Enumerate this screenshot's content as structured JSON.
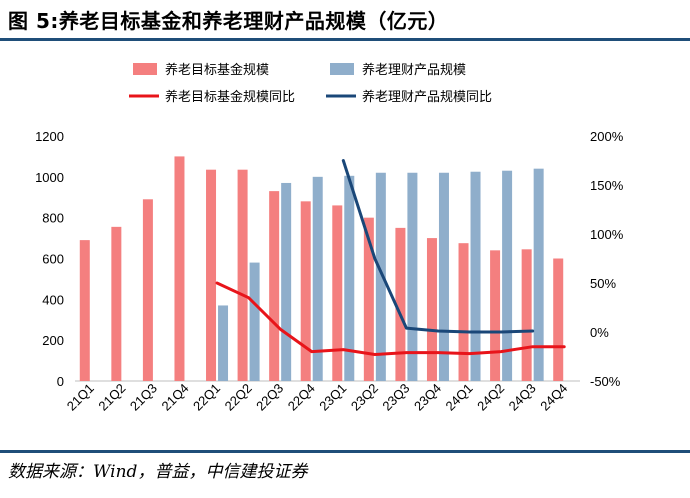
{
  "title": "图 5:养老目标基金和养老理财产品规模（亿元）",
  "source": "数据来源：Wind，普益，中信建投证券",
  "colors": {
    "fund_bar": "#f47f7f",
    "wealth_bar": "#8faecb",
    "fund_line": "#e8141a",
    "wealth_line": "#1a4778",
    "rule": "#1f4e79"
  },
  "chart_data": {
    "type": "bar",
    "categories": [
      "21Q1",
      "21Q2",
      "21Q3",
      "21Q4",
      "22Q1",
      "22Q2",
      "22Q3",
      "22Q4",
      "23Q1",
      "23Q2",
      "23Q3",
      "23Q4",
      "24Q1",
      "24Q2",
      "24Q3",
      "24Q4"
    ],
    "series": [
      {
        "name": "养老目标基金规模",
        "kind": "bar",
        "axis": "left",
        "values": [
          690,
          755,
          890,
          1100,
          1035,
          1035,
          930,
          880,
          860,
          800,
          750,
          700,
          675,
          640,
          645,
          600
        ]
      },
      {
        "name": "养老理财产品规模",
        "kind": "bar",
        "axis": "left",
        "values": [
          null,
          null,
          null,
          null,
          370,
          580,
          970,
          1000,
          1005,
          1020,
          1020,
          1020,
          1025,
          1030,
          1040,
          null
        ]
      },
      {
        "name": "养老目标基金规模同比",
        "kind": "line",
        "axis": "right",
        "values": [
          null,
          null,
          null,
          null,
          50,
          35,
          3,
          -20,
          -18,
          -23,
          -21,
          -21,
          -22,
          -20,
          -15,
          -15
        ]
      },
      {
        "name": "养老理财产品规模同比",
        "kind": "line",
        "axis": "right",
        "values": [
          null,
          null,
          null,
          null,
          null,
          null,
          null,
          null,
          175,
          75,
          4,
          1,
          0,
          0,
          1,
          null
        ]
      }
    ],
    "left_axis": {
      "min": 0,
      "max": 1200,
      "ticks": [
        "0",
        "200",
        "400",
        "600",
        "800",
        "1000",
        "1200"
      ]
    },
    "right_axis": {
      "min": -50,
      "max": 200,
      "ticks": [
        "-50%",
        "0%",
        "50%",
        "100%",
        "150%",
        "200%"
      ]
    },
    "legend_position": "top",
    "grid": false
  }
}
